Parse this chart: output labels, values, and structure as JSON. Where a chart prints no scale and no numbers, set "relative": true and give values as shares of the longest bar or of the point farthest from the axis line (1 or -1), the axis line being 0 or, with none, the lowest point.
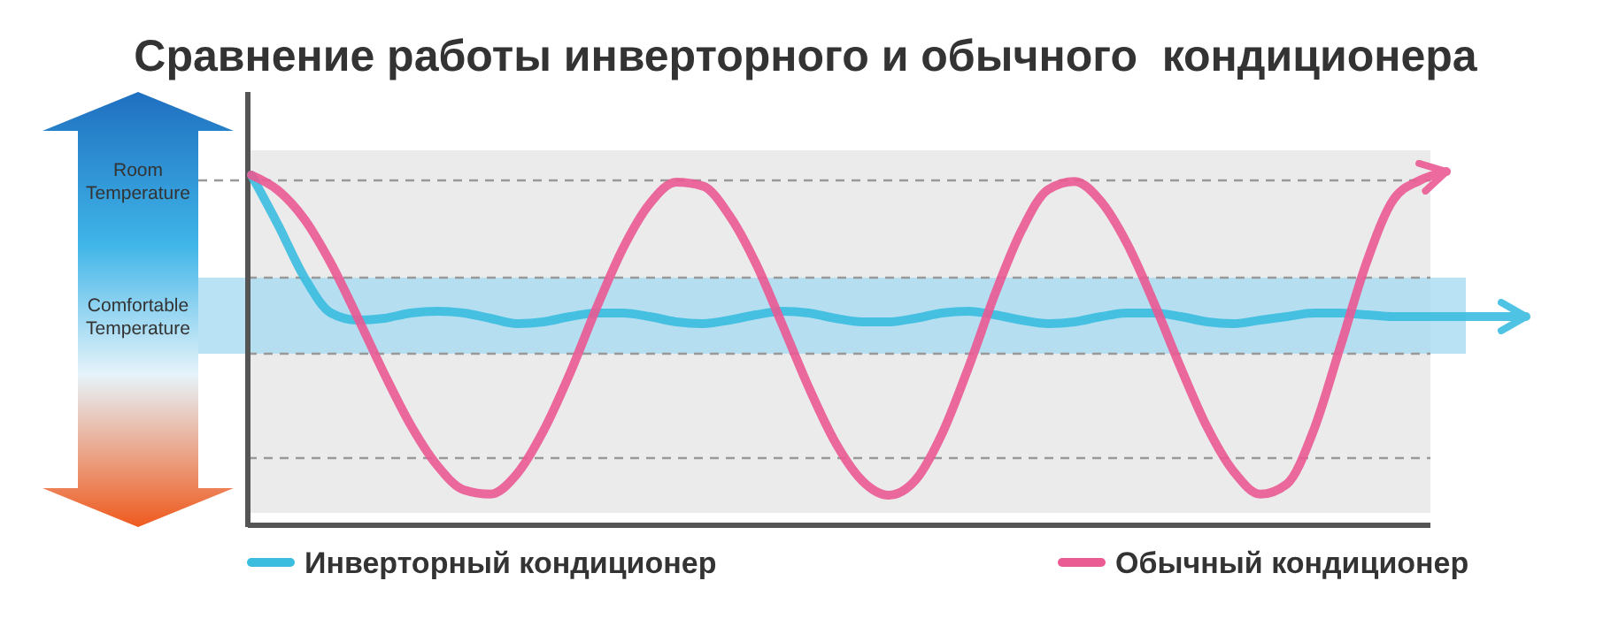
{
  "chart_data": {
    "type": "line",
    "title": "Сравнение работы инверторного и обычного  кондиционера",
    "relative": true,
    "legend": "bottom",
    "categories": [
      null,
      null,
      null,
      null,
      null,
      null,
      null,
      null,
      null,
      null,
      null,
      null,
      null,
      null,
      null,
      null,
      null,
      null,
      null,
      null,
      null,
      null,
      null,
      null,
      null,
      null,
      null,
      null,
      null,
      null,
      null,
      null,
      null,
      null,
      null,
      null,
      null,
      null,
      null,
      null,
      null,
      null,
      null,
      null,
      null,
      null,
      null,
      null,
      null
    ],
    "series": [
      {
        "name": "Инверторный кондиционер",
        "color": "#3bbde0",
        "values": [
          0.99,
          0.85,
          0.7,
          0.6,
          0.58,
          0.585,
          0.6,
          0.605,
          0.6,
          0.585,
          0.57,
          0.575,
          0.59,
          0.6,
          0.6,
          0.59,
          0.575,
          0.57,
          0.58,
          0.595,
          0.605,
          0.6,
          0.585,
          0.575,
          0.575,
          0.585,
          0.6,
          0.605,
          0.595,
          0.58,
          0.57,
          0.575,
          0.59,
          0.6,
          0.6,
          0.59,
          0.575,
          0.57,
          0.58,
          0.59,
          0.6,
          0.6,
          0.595,
          0.59,
          0.59,
          0.59,
          0.59,
          0.59,
          0.59
        ]
      },
      {
        "name": "Обычный кондиционер",
        "color": "#ea5a93",
        "values": [
          0.99,
          0.947,
          0.865,
          0.74,
          0.588,
          0.429,
          0.283,
          0.169,
          0.1,
          0.088,
          0.145,
          0.267,
          0.43,
          0.615,
          0.784,
          0.909,
          0.97,
          0.959,
          0.876,
          0.74,
          0.566,
          0.388,
          0.233,
          0.126,
          0.085,
          0.127,
          0.257,
          0.445,
          0.653,
          0.833,
          0.949,
          0.972,
          0.915,
          0.793,
          0.627,
          0.445,
          0.276,
          0.151,
          0.088,
          0.117,
          0.268,
          0.503,
          0.744,
          0.92,
          0.975,
          1.0,
          null,
          null,
          null
        ]
      }
    ],
    "bands": [
      {
        "axis": "y",
        "from": 0.485,
        "to": 0.7,
        "label": "Comfortable Temperature",
        "color": "#a8dcf2"
      }
    ],
    "ref_lines": [
      {
        "axis": "y",
        "value": 0.975,
        "label": "Room Temperature",
        "line_style": "dashed"
      },
      {
        "axis": "y",
        "value": 0.7,
        "line_style": "dashed"
      },
      {
        "axis": "y",
        "value": 0.485,
        "line_style": "dashed"
      },
      {
        "axis": "y",
        "value": 0.19,
        "line_style": "dashed"
      }
    ]
  }
}
